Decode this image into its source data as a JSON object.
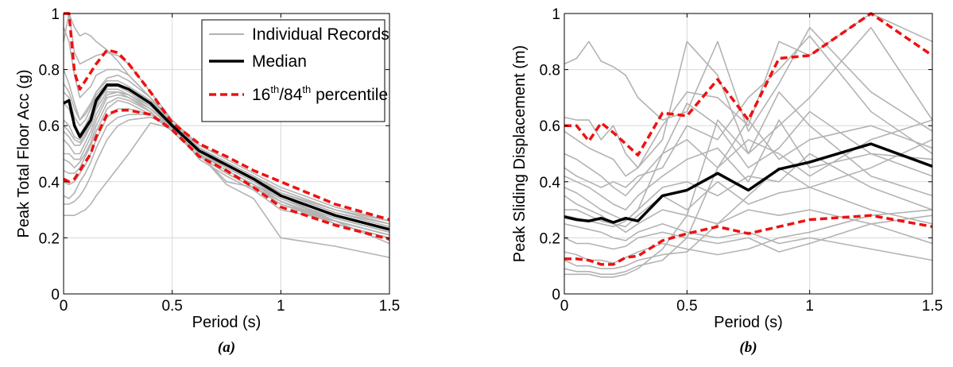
{
  "chart_data": [
    {
      "type": "line",
      "panel_label": "(a)",
      "xlabel": "Period (s)",
      "ylabel": "Peak Total Floor Acc (g)",
      "xlim": [
        0,
        1.5
      ],
      "ylim": [
        0,
        1
      ],
      "xticks": [
        "0",
        "0.5",
        "1",
        "1.5"
      ],
      "yticks": [
        "0",
        "0.2",
        "0.4",
        "0.6",
        "0.8",
        "1"
      ],
      "xtick_values": [
        0,
        0.5,
        1,
        1.5
      ],
      "ytick_values": [
        0,
        0.2,
        0.4,
        0.6,
        0.8,
        1
      ],
      "grid": true,
      "legend": {
        "placement": "top-right",
        "entries": [
          {
            "label": "Individual Records",
            "style": "gray"
          },
          {
            "label": "Median",
            "style": "median"
          },
          {
            "label_parts": [
              "16",
              "th",
              "/84",
              "th",
              " percentile"
            ],
            "style": "percentile"
          }
        ]
      },
      "colors": {
        "records": "#b3b3b3",
        "median": "#000000",
        "percentile": "#ee1111"
      },
      "x": [
        0,
        0.025,
        0.05,
        0.075,
        0.1,
        0.125,
        0.15,
        0.2,
        0.25,
        0.3,
        0.4,
        0.5,
        0.625,
        0.75,
        0.875,
        1,
        1.25,
        1.5
      ],
      "median": [
        0.68,
        0.69,
        0.6,
        0.56,
        0.59,
        0.62,
        0.69,
        0.745,
        0.745,
        0.73,
        0.68,
        0.6,
        0.51,
        0.46,
        0.41,
        0.35,
        0.28,
        0.23
      ],
      "p16": [
        0.41,
        0.4,
        0.41,
        0.44,
        0.47,
        0.5,
        0.56,
        0.64,
        0.655,
        0.655,
        0.64,
        0.585,
        0.49,
        0.44,
        0.38,
        0.31,
        0.245,
        0.195
      ],
      "p84": [
        1.02,
        1.0,
        0.79,
        0.73,
        0.76,
        0.79,
        0.82,
        0.87,
        0.86,
        0.82,
        0.72,
        0.61,
        0.535,
        0.49,
        0.44,
        0.4,
        0.32,
        0.265
      ],
      "records": [
        [
          0.9,
          1.0,
          0.95,
          0.92,
          0.93,
          0.92,
          0.9,
          0.87,
          0.83,
          0.78,
          0.7,
          0.62,
          0.52,
          0.47,
          0.42,
          0.37,
          0.3,
          0.26
        ],
        [
          1.0,
          1.0,
          0.86,
          0.82,
          0.83,
          0.84,
          0.85,
          0.86,
          0.85,
          0.82,
          0.72,
          0.62,
          0.53,
          0.48,
          0.43,
          0.38,
          0.31,
          0.26
        ],
        [
          0.95,
          0.9,
          0.78,
          0.7,
          0.72,
          0.74,
          0.78,
          0.8,
          0.8,
          0.78,
          0.7,
          0.61,
          0.52,
          0.47,
          0.42,
          0.36,
          0.29,
          0.25
        ],
        [
          0.8,
          0.75,
          0.68,
          0.62,
          0.65,
          0.68,
          0.72,
          0.76,
          0.76,
          0.74,
          0.69,
          0.61,
          0.52,
          0.46,
          0.41,
          0.36,
          0.29,
          0.24
        ],
        [
          0.72,
          0.7,
          0.63,
          0.6,
          0.62,
          0.66,
          0.71,
          0.75,
          0.75,
          0.73,
          0.68,
          0.6,
          0.51,
          0.46,
          0.41,
          0.35,
          0.28,
          0.23
        ],
        [
          0.68,
          0.66,
          0.6,
          0.57,
          0.6,
          0.64,
          0.7,
          0.74,
          0.74,
          0.72,
          0.67,
          0.6,
          0.51,
          0.45,
          0.4,
          0.35,
          0.28,
          0.23
        ],
        [
          0.62,
          0.6,
          0.56,
          0.55,
          0.58,
          0.62,
          0.68,
          0.73,
          0.73,
          0.71,
          0.67,
          0.59,
          0.5,
          0.45,
          0.4,
          0.34,
          0.27,
          0.22
        ],
        [
          0.58,
          0.56,
          0.53,
          0.53,
          0.56,
          0.6,
          0.66,
          0.72,
          0.72,
          0.71,
          0.66,
          0.59,
          0.5,
          0.44,
          0.39,
          0.34,
          0.27,
          0.22
        ],
        [
          0.55,
          0.53,
          0.5,
          0.5,
          0.54,
          0.58,
          0.64,
          0.71,
          0.72,
          0.7,
          0.66,
          0.59,
          0.5,
          0.44,
          0.39,
          0.33,
          0.26,
          0.21
        ],
        [
          0.5,
          0.5,
          0.48,
          0.48,
          0.52,
          0.56,
          0.62,
          0.7,
          0.71,
          0.7,
          0.65,
          0.58,
          0.49,
          0.43,
          0.38,
          0.33,
          0.26,
          0.21
        ],
        [
          0.48,
          0.47,
          0.45,
          0.47,
          0.5,
          0.54,
          0.6,
          0.68,
          0.7,
          0.69,
          0.65,
          0.58,
          0.49,
          0.43,
          0.38,
          0.32,
          0.26,
          0.21
        ],
        [
          0.44,
          0.43,
          0.43,
          0.45,
          0.49,
          0.53,
          0.58,
          0.66,
          0.69,
          0.68,
          0.64,
          0.58,
          0.49,
          0.43,
          0.38,
          0.32,
          0.25,
          0.2
        ],
        [
          0.4,
          0.39,
          0.4,
          0.43,
          0.46,
          0.5,
          0.55,
          0.63,
          0.66,
          0.66,
          0.64,
          0.59,
          0.5,
          0.44,
          0.39,
          0.33,
          0.25,
          0.2
        ],
        [
          0.35,
          0.34,
          0.36,
          0.4,
          0.43,
          0.47,
          0.52,
          0.6,
          0.63,
          0.64,
          0.64,
          0.6,
          0.51,
          0.45,
          0.4,
          0.34,
          0.26,
          0.21
        ],
        [
          0.32,
          0.32,
          0.33,
          0.35,
          0.38,
          0.42,
          0.47,
          0.55,
          0.6,
          0.62,
          0.63,
          0.6,
          0.52,
          0.46,
          0.41,
          0.35,
          0.26,
          0.21
        ],
        [
          0.28,
          0.28,
          0.28,
          0.29,
          0.3,
          0.32,
          0.35,
          0.4,
          0.45,
          0.5,
          0.61,
          0.59,
          0.5,
          0.39,
          0.34,
          0.2,
          0.17,
          0.13
        ],
        [
          0.6,
          0.58,
          0.55,
          0.54,
          0.57,
          0.61,
          0.67,
          0.74,
          0.75,
          0.73,
          0.68,
          0.6,
          0.5,
          0.4,
          0.38,
          0.36,
          0.3,
          0.25
        ],
        [
          0.75,
          0.72,
          0.66,
          0.62,
          0.64,
          0.67,
          0.72,
          0.77,
          0.78,
          0.76,
          0.7,
          0.6,
          0.48,
          0.42,
          0.37,
          0.3,
          0.26,
          0.18
        ]
      ]
    },
    {
      "type": "line",
      "panel_label": "(b)",
      "xlabel": "Period (s)",
      "ylabel": "Peak Sliding Displacement (m)",
      "xlim": [
        0,
        1.5
      ],
      "ylim": [
        0,
        1
      ],
      "xticks": [
        "0",
        "0.5",
        "1",
        "1.5"
      ],
      "yticks": [
        "0",
        "0.2",
        "0.4",
        "0.6",
        "0.8",
        "1"
      ],
      "xtick_values": [
        0,
        0.5,
        1,
        1.5
      ],
      "ytick_values": [
        0,
        0.2,
        0.4,
        0.6,
        0.8,
        1
      ],
      "grid": true,
      "colors": {
        "records": "#b3b3b3",
        "median": "#000000",
        "percentile": "#ee1111"
      },
      "x": [
        0,
        0.05,
        0.1,
        0.15,
        0.2,
        0.25,
        0.3,
        0.4,
        0.5,
        0.625,
        0.75,
        0.875,
        1,
        1.25,
        1.5
      ],
      "median": [
        0.275,
        0.265,
        0.26,
        0.27,
        0.255,
        0.27,
        0.26,
        0.35,
        0.37,
        0.43,
        0.37,
        0.445,
        0.47,
        0.535,
        0.455
      ],
      "p16": [
        0.125,
        0.125,
        0.12,
        0.105,
        0.105,
        0.13,
        0.135,
        0.19,
        0.215,
        0.24,
        0.215,
        0.24,
        0.265,
        0.28,
        0.24
      ],
      "p84": [
        0.6,
        0.6,
        0.545,
        0.61,
        0.575,
        0.535,
        0.495,
        0.645,
        0.635,
        0.765,
        0.62,
        0.84,
        0.85,
        1.01,
        0.85
      ],
      "records": [
        [
          0.82,
          0.84,
          0.9,
          0.83,
          0.81,
          0.78,
          0.7,
          0.62,
          0.65,
          0.9,
          0.58,
          0.75,
          0.95,
          0.72,
          0.58
        ],
        [
          0.63,
          0.62,
          0.62,
          0.55,
          0.6,
          0.5,
          0.45,
          0.6,
          0.72,
          0.7,
          0.6,
          0.9,
          0.85,
          1.05,
          0.9
        ],
        [
          0.58,
          0.55,
          0.52,
          0.5,
          0.48,
          0.42,
          0.45,
          0.55,
          0.9,
          0.78,
          0.5,
          0.6,
          0.7,
          0.95,
          0.62
        ],
        [
          0.5,
          0.48,
          0.45,
          0.42,
          0.38,
          0.35,
          0.4,
          0.5,
          0.55,
          0.45,
          0.62,
          0.48,
          0.55,
          0.6,
          0.52
        ],
        [
          0.42,
          0.4,
          0.38,
          0.35,
          0.32,
          0.3,
          0.35,
          0.42,
          0.48,
          0.52,
          0.4,
          0.62,
          0.45,
          0.5,
          0.48
        ],
        [
          0.38,
          0.36,
          0.33,
          0.3,
          0.28,
          0.26,
          0.3,
          0.38,
          0.4,
          0.35,
          0.42,
          0.4,
          0.5,
          0.38,
          0.3
        ],
        [
          0.35,
          0.32,
          0.3,
          0.28,
          0.25,
          0.24,
          0.28,
          0.35,
          0.3,
          0.4,
          0.32,
          0.36,
          0.38,
          0.3,
          0.25
        ],
        [
          0.3,
          0.3,
          0.28,
          0.26,
          0.25,
          0.22,
          0.25,
          0.3,
          0.28,
          0.25,
          0.3,
          0.28,
          0.3,
          0.25,
          0.18
        ],
        [
          0.25,
          0.24,
          0.23,
          0.22,
          0.2,
          0.19,
          0.22,
          0.25,
          0.22,
          0.2,
          0.22,
          0.18,
          0.2,
          0.16,
          0.12
        ],
        [
          0.2,
          0.18,
          0.18,
          0.17,
          0.16,
          0.17,
          0.2,
          0.22,
          0.2,
          0.18,
          0.2,
          0.15,
          0.18,
          0.25,
          0.28
        ],
        [
          0.15,
          0.14,
          0.12,
          0.12,
          0.11,
          0.13,
          0.15,
          0.18,
          0.16,
          0.14,
          0.16,
          0.2,
          0.22,
          0.28,
          0.3
        ],
        [
          0.12,
          0.1,
          0.1,
          0.09,
          0.09,
          0.1,
          0.12,
          0.14,
          0.15,
          0.25,
          0.35,
          0.45,
          0.38,
          0.45,
          0.55
        ],
        [
          0.09,
          0.08,
          0.08,
          0.07,
          0.07,
          0.08,
          0.1,
          0.12,
          0.2,
          0.45,
          0.55,
          0.5,
          0.42,
          0.55,
          0.62
        ],
        [
          0.07,
          0.07,
          0.07,
          0.06,
          0.06,
          0.07,
          0.09,
          0.16,
          0.28,
          0.62,
          0.5,
          0.72,
          0.6,
          0.42,
          0.35
        ],
        [
          0.45,
          0.42,
          0.4,
          0.38,
          0.4,
          0.38,
          0.42,
          0.45,
          0.6,
          0.55,
          0.7,
          0.8,
          0.92,
          0.65,
          0.5
        ],
        [
          0.28,
          0.27,
          0.26,
          0.25,
          0.24,
          0.26,
          0.3,
          0.5,
          0.68,
          0.6,
          0.45,
          0.52,
          0.65,
          0.5,
          0.42
        ]
      ]
    }
  ]
}
